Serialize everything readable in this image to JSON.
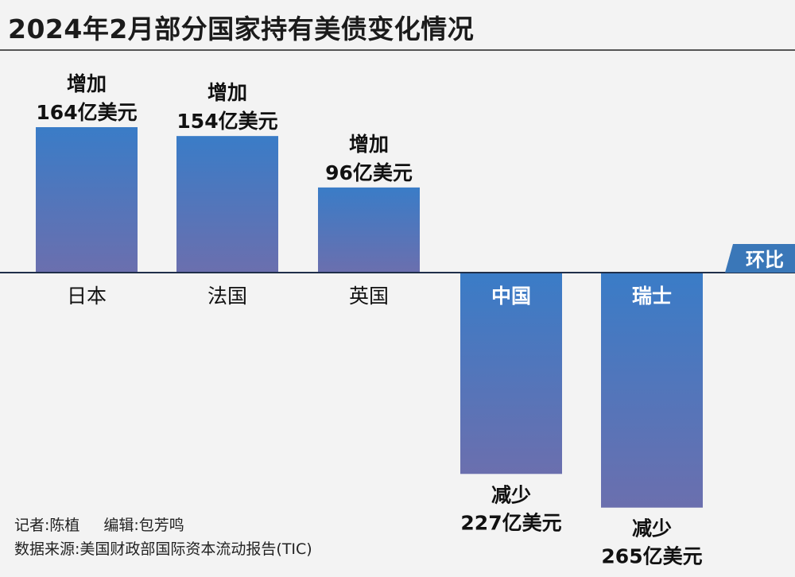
{
  "title": "2024年2月部分国家持有美债变化情况",
  "chart_data": {
    "type": "bar",
    "categories": [
      "日本",
      "法国",
      "英国",
      "中国",
      "瑞士"
    ],
    "values": [
      164,
      154,
      96,
      -227,
      -265
    ],
    "unit": "亿美元",
    "data_labels": [
      [
        "增加",
        "164亿美元"
      ],
      [
        "增加",
        "154亿美元"
      ],
      [
        "增加",
        "96亿美元"
      ],
      [
        "减少",
        "227亿美元"
      ],
      [
        "减少",
        "265亿美元"
      ]
    ],
    "baseline_tag": "环比",
    "colors": {
      "bar_top": "#3a7cc7",
      "bar_bottom": "#6b6fae",
      "tag": "#3a77b8"
    }
  },
  "credits": {
    "reporter": "记者:陈植",
    "editor": "编辑:包芳鸣",
    "source": "数据来源:美国财政部国际资本流动报告(TIC)"
  }
}
